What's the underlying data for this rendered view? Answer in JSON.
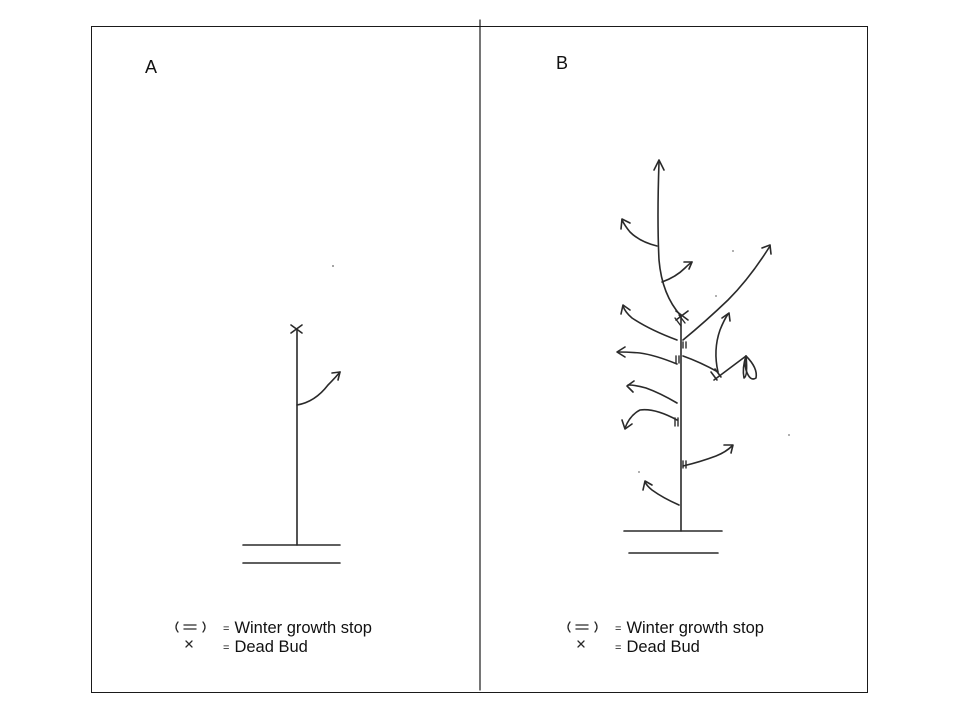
{
  "panels": {
    "a": {
      "letter": "A"
    },
    "b": {
      "letter": "B"
    }
  },
  "legend": {
    "equals_sign": "=",
    "winter_symbol_text": "(=)",
    "dead_bud_symbol_text": "×",
    "winter_growth_stop": "Winter growth stop",
    "dead_bud": "Dead Bud"
  },
  "colors": {
    "ink": "#2a2a2a",
    "frame": "#1a1a1a",
    "background": "#ffffff"
  }
}
